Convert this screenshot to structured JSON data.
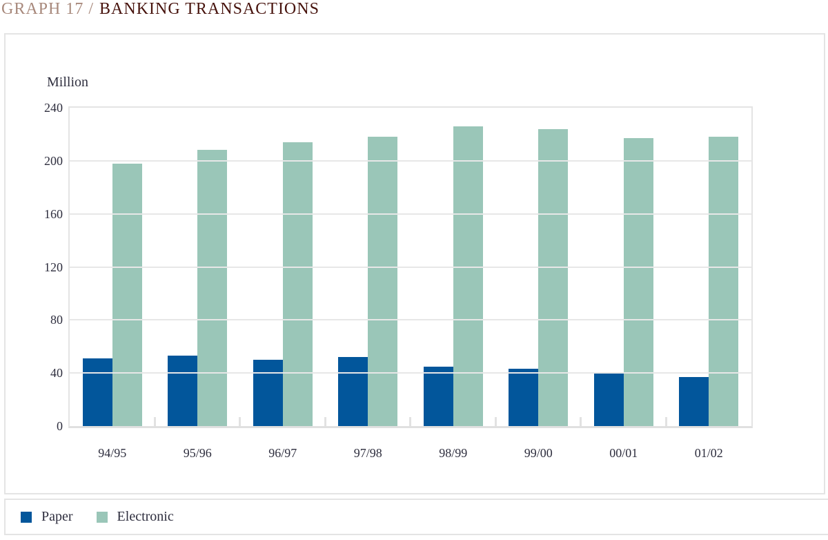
{
  "title": {
    "prefix": "GRAPH 17 /",
    "main": "BANKING TRANSACTIONS"
  },
  "colors": {
    "paper": "#02569b",
    "electronic": "#9ac6b8",
    "grid": "#e7e7e7",
    "title_prefix": "#a8897c",
    "title_main": "#47130d",
    "text": "#2e2e3e"
  },
  "chart_data": {
    "type": "bar",
    "title": "Banking Transactions",
    "ylabel": "Million",
    "xlabel": "",
    "categories": [
      "94/95",
      "95/96",
      "96/97",
      "97/98",
      "98/99",
      "99/00",
      "00/01",
      "01/02"
    ],
    "series": [
      {
        "name": "Paper",
        "color": "#02569b",
        "values": [
          51,
          53,
          50,
          52,
          45,
          43,
          40,
          37
        ]
      },
      {
        "name": "Electronic",
        "color": "#9ac6b8",
        "values": [
          198,
          208,
          214,
          218,
          226,
          224,
          217,
          218
        ]
      }
    ],
    "ylim": [
      0,
      240
    ],
    "y_ticks": [
      0,
      40,
      80,
      120,
      160,
      200,
      240
    ],
    "grid": "horizontal",
    "legend_position": "bottom"
  }
}
